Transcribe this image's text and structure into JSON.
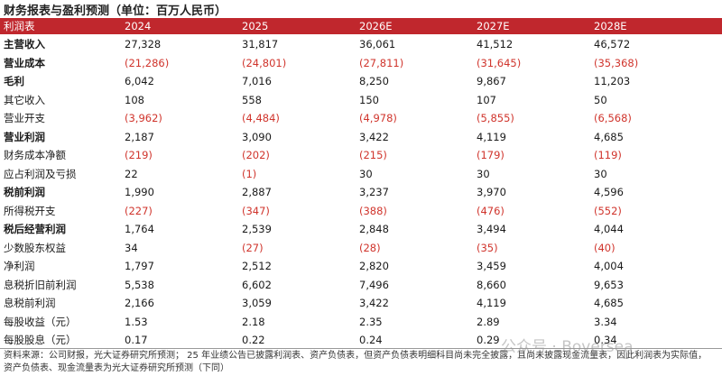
{
  "header": {
    "title": "财务报表与盈利预测（单位：百万人民币）"
  },
  "table": {
    "columns": [
      "利润表",
      "2024",
      "2025",
      "2026E",
      "2027E",
      "2028E"
    ],
    "rows": [
      {
        "label": "主营收入",
        "bold": true,
        "values": [
          "27,328",
          "31,817",
          "36,061",
          "41,512",
          "46,572"
        ]
      },
      {
        "label": "营业成本",
        "bold": true,
        "values": [
          "(21,286)",
          "(24,801)",
          "(27,811)",
          "(31,645)",
          "(35,368)"
        ]
      },
      {
        "label": "毛利",
        "bold": true,
        "values": [
          "6,042",
          "7,016",
          "8,250",
          "9,867",
          "11,203"
        ]
      },
      {
        "label": "其它收入",
        "bold": false,
        "values": [
          "108",
          "558",
          "150",
          "107",
          "50"
        ]
      },
      {
        "label": "营业开支",
        "bold": false,
        "values": [
          "(3,962)",
          "(4,484)",
          "(4,978)",
          "(5,855)",
          "(6,568)"
        ]
      },
      {
        "label": "营业利润",
        "bold": true,
        "values": [
          "2,187",
          "3,090",
          "3,422",
          "4,119",
          "4,685"
        ]
      },
      {
        "label": "财务成本净额",
        "bold": false,
        "values": [
          "(219)",
          "(202)",
          "(215)",
          "(179)",
          "(119)"
        ]
      },
      {
        "label": "应占利润及亏损",
        "bold": false,
        "values": [
          "22",
          "(1)",
          "30",
          "30",
          "30"
        ]
      },
      {
        "label": "税前利润",
        "bold": true,
        "values": [
          "1,990",
          "2,887",
          "3,237",
          "3,970",
          "4,596"
        ]
      },
      {
        "label": "所得税开支",
        "bold": false,
        "values": [
          "(227)",
          "(347)",
          "(388)",
          "(476)",
          "(552)"
        ]
      },
      {
        "label": "税后经营利润",
        "bold": true,
        "values": [
          "1,764",
          "2,539",
          "2,848",
          "3,494",
          "4,044"
        ]
      },
      {
        "label": "少数股东权益",
        "bold": false,
        "values": [
          "34",
          "(27)",
          "(28)",
          "(35)",
          "(40)"
        ]
      },
      {
        "label": "净利润",
        "bold": false,
        "values": [
          "1,797",
          "2,512",
          "2,820",
          "3,459",
          "4,004"
        ]
      },
      {
        "label": "息税折旧前利润",
        "bold": false,
        "values": [
          "5,538",
          "6,602",
          "7,496",
          "8,660",
          "9,653"
        ]
      },
      {
        "label": "息税前利润",
        "bold": false,
        "values": [
          "2,166",
          "3,059",
          "3,422",
          "4,119",
          "4,685"
        ]
      },
      {
        "label": "每股收益（元）",
        "bold": false,
        "values": [
          "1.53",
          "2.18",
          "2.35",
          "2.89",
          "3.34"
        ]
      },
      {
        "label": "每股股息（元）",
        "bold": false,
        "values": [
          "0.17",
          "0.22",
          "0.24",
          "0.29",
          "0.34"
        ]
      }
    ]
  },
  "footer": {
    "note": "资料来源：公司财报，光大证券研究所预测； 25 年业绩公告已披露利润表、资产负债表，但资产负债表明细科目尚未完全披露，且尚未披露现金流量表，因此利润表为实际值，资产负债表、现金流量表为光大证券研究所预测（下同）",
    "watermark": "公众号 · Boversea"
  }
}
